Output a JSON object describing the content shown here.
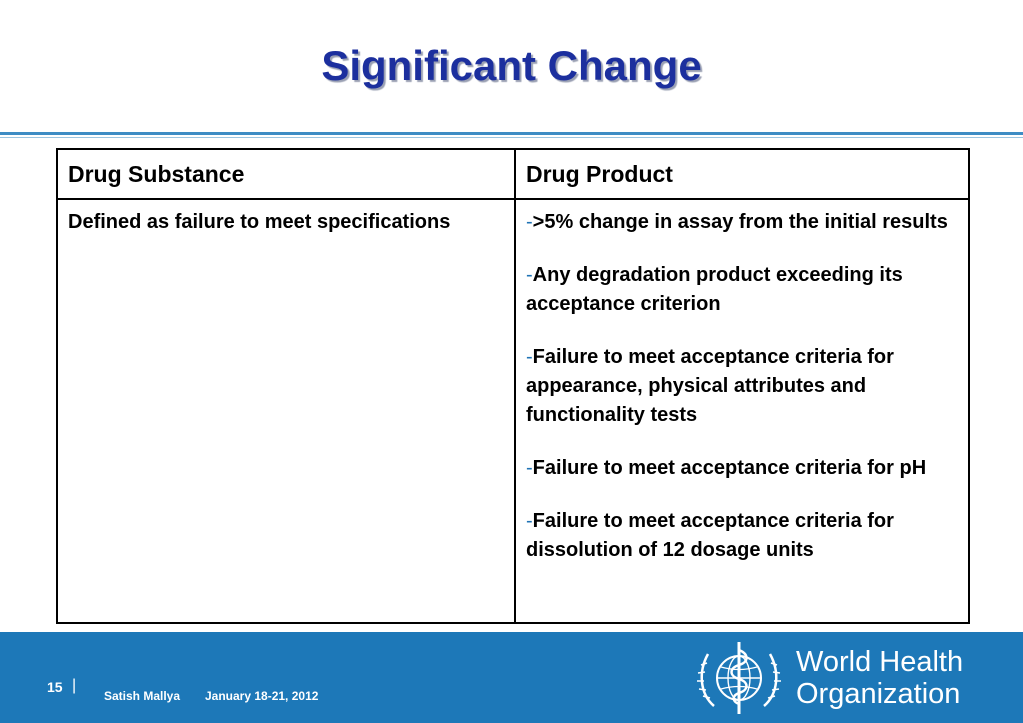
{
  "slide": {
    "title": "Significant Change"
  },
  "table": {
    "headers": [
      "Drug Substance",
      "Drug Product"
    ],
    "substance_text": "Defined as failure to meet specifications",
    "product_dash": "-",
    "product_items": [
      ">5% change in assay from the initial results",
      "Any degradation product exceeding its acceptance criterion",
      "Failure to meet acceptance criteria for appearance, physical attributes and functionality tests",
      "Failure to meet acceptance criteria for pH",
      "Failure to meet acceptance criteria for dissolution of 12 dosage units"
    ]
  },
  "footer": {
    "page_number": "15",
    "separator": "|",
    "presenter": "Satish Mallya",
    "date": "January 18-21, 2012",
    "org_line1": "World Health",
    "org_line2": "Organization",
    "logo_icon": "who-emblem-icon"
  },
  "colors": {
    "title": "#1c2f9e",
    "header_substance": "#e23c0e",
    "header_product": "#1e8a1e",
    "footer_bg": "#1d78b8"
  }
}
